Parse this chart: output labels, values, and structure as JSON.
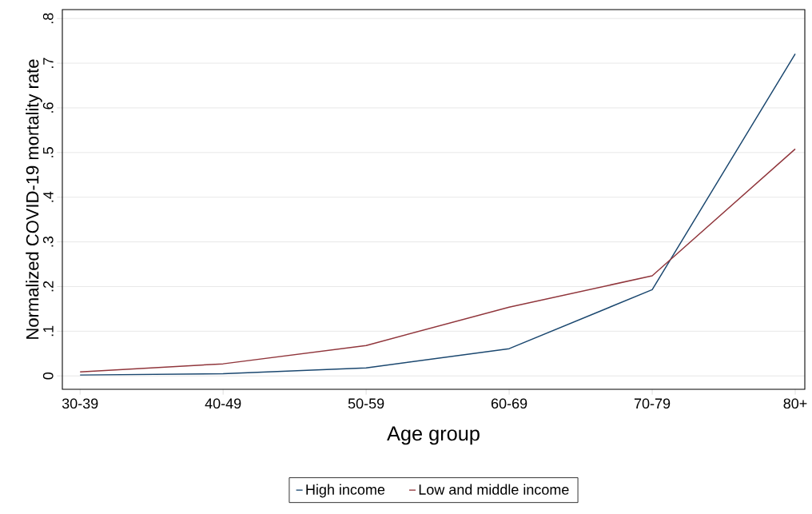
{
  "chart_data": {
    "type": "line",
    "xlabel": "Age group",
    "ylabel": "Normalized COVID-19 mortality rate",
    "categories": [
      "30-39",
      "40-49",
      "50-59",
      "60-69",
      "70-79",
      "80+"
    ],
    "series": [
      {
        "name": "High income",
        "color": "#1a476f",
        "values": [
          0.002,
          0.005,
          0.018,
          0.061,
          0.193,
          0.721
        ]
      },
      {
        "name": "Low and middle income",
        "color": "#90353b",
        "values": [
          0.009,
          0.027,
          0.068,
          0.154,
          0.224,
          0.508
        ]
      }
    ],
    "ylim": [
      -0.03,
      0.82
    ],
    "yticks": [
      {
        "value": 0,
        "label": "0"
      },
      {
        "value": 0.1,
        "label": ".1"
      },
      {
        "value": 0.2,
        "label": ".2"
      },
      {
        "value": 0.3,
        "label": ".3"
      },
      {
        "value": 0.4,
        "label": ".4"
      },
      {
        "value": 0.5,
        "label": ".5"
      },
      {
        "value": 0.6,
        "label": ".6"
      },
      {
        "value": 0.7,
        "label": ".7"
      },
      {
        "value": 0.8,
        "label": ".8"
      }
    ],
    "grid": "y",
    "legend": "bottom",
    "marker": "none",
    "line_style": "solid"
  }
}
